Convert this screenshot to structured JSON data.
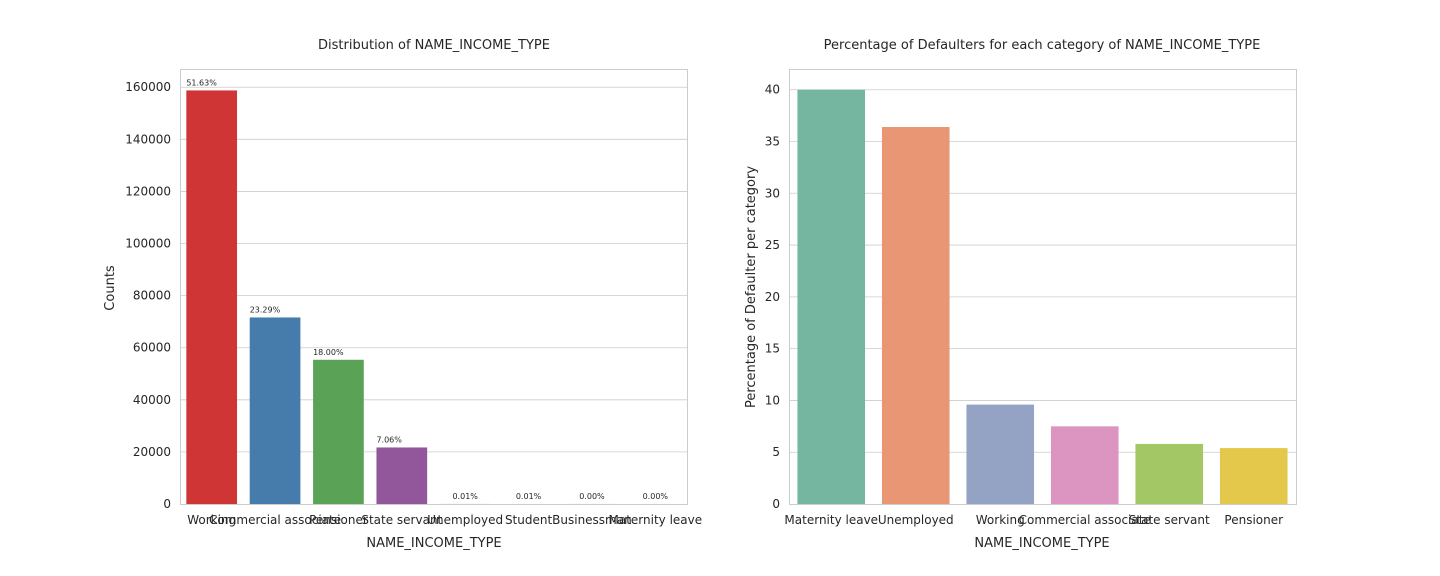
{
  "chart_data": [
    {
      "type": "bar",
      "title": "Distribution of NAME_INCOME_TYPE",
      "xlabel": "NAME_INCOME_TYPE",
      "ylabel": "Counts",
      "categories": [
        "Working",
        "Commercial associate",
        "Pensioner",
        "State servant",
        "Unemployed",
        "Student",
        "Businessman",
        "Maternity leave"
      ],
      "values": [
        158774,
        71617,
        55362,
        21703,
        22,
        18,
        10,
        5
      ],
      "data_labels": [
        "51.63%",
        "23.29%",
        "18.00%",
        "7.06%",
        "0.01%",
        "0.01%",
        "0.00%",
        "0.00%"
      ],
      "colors": [
        "#d03536",
        "#467cab",
        "#5aa356",
        "#92579a",
        "#ff8000",
        "#ffff33",
        "#a65628",
        "#f781bf"
      ],
      "ylim": [
        0,
        167000
      ],
      "yticks": [
        0,
        20000,
        40000,
        60000,
        80000,
        100000,
        120000,
        140000,
        160000
      ],
      "grid": true
    },
    {
      "type": "bar",
      "title": "Percentage of Defaulters for each category of NAME_INCOME_TYPE",
      "xlabel": "NAME_INCOME_TYPE",
      "ylabel": "Percentage of Defaulter per category",
      "categories": [
        "Maternity leave",
        "Unemployed",
        "Working",
        "Commercial associate",
        "State servant",
        "Pensioner"
      ],
      "values": [
        40.0,
        36.4,
        9.6,
        7.5,
        5.8,
        5.4
      ],
      "colors": [
        "#74b6a0",
        "#e89674",
        "#94a3c4",
        "#dc95c1",
        "#a3c765",
        "#e4c84b"
      ],
      "ylim": [
        0,
        42
      ],
      "yticks": [
        0,
        5,
        10,
        15,
        20,
        25,
        30,
        35,
        40
      ],
      "grid": true
    }
  ]
}
